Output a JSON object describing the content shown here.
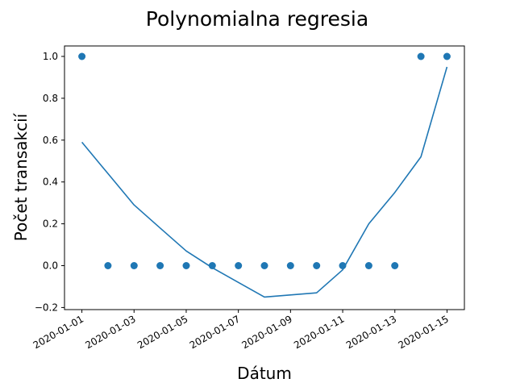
{
  "chart_data": {
    "type": "scatter",
    "title": "Polynomialna regresia",
    "xlabel": "Dátum",
    "ylabel": "Počet transakcií",
    "xlim": [
      "2019-12-31T08:00",
      "2020-01-15T16:00"
    ],
    "ylim": [
      -0.21,
      1.05
    ],
    "x_ticks": [
      "2020-01-01",
      "2020-01-03",
      "2020-01-05",
      "2020-01-07",
      "2020-01-09",
      "2020-01-11",
      "2020-01-13",
      "2020-01-15"
    ],
    "y_ticks": [
      "−0.2",
      "0.0",
      "0.2",
      "0.4",
      "0.6",
      "0.8",
      "1.0"
    ],
    "grid": false,
    "colors": {
      "series": "#1f77b4"
    },
    "series": [
      {
        "kind": "scatter",
        "x": [
          "2020-01-01",
          "2020-01-02",
          "2020-01-03",
          "2020-01-04",
          "2020-01-05",
          "2020-01-06",
          "2020-01-07",
          "2020-01-08",
          "2020-01-09",
          "2020-01-10",
          "2020-01-11",
          "2020-01-12",
          "2020-01-13",
          "2020-01-14",
          "2020-01-15"
        ],
        "y": [
          1,
          0,
          0,
          0,
          0,
          0,
          0,
          0,
          0,
          0,
          0,
          0,
          0,
          1,
          1
        ]
      },
      {
        "kind": "line",
        "x": [
          "2020-01-01",
          "2020-01-02",
          "2020-01-03",
          "2020-01-04",
          "2020-01-05",
          "2020-01-06",
          "2020-01-07",
          "2020-01-08",
          "2020-01-09",
          "2020-01-10",
          "2020-01-11",
          "2020-01-12",
          "2020-01-13",
          "2020-01-14",
          "2020-01-15"
        ],
        "y": [
          0.59,
          0.44,
          0.29,
          0.18,
          0.07,
          -0.01,
          -0.08,
          -0.15,
          -0.14,
          -0.13,
          -0.02,
          0.2,
          0.35,
          0.52,
          0.95
        ]
      }
    ]
  }
}
